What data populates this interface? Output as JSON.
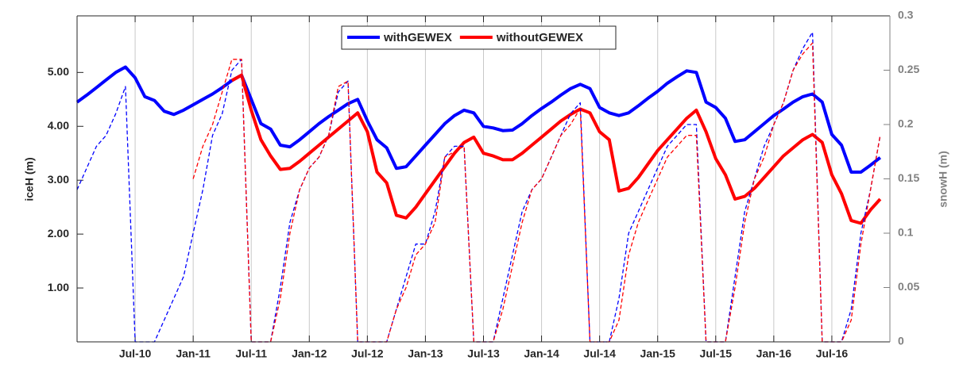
{
  "chart_data": {
    "type": "line",
    "x": [
      "2010-01",
      "2010-02",
      "2010-03",
      "2010-04",
      "2010-05",
      "2010-06",
      "2010-07",
      "2010-08",
      "2010-09",
      "2010-10",
      "2010-11",
      "2010-12",
      "2011-01",
      "2011-02",
      "2011-03",
      "2011-04",
      "2011-05",
      "2011-06",
      "2011-07",
      "2011-08",
      "2011-09",
      "2011-10",
      "2011-11",
      "2011-12",
      "2012-01",
      "2012-02",
      "2012-03",
      "2012-04",
      "2012-05",
      "2012-06",
      "2012-07",
      "2012-08",
      "2012-09",
      "2012-10",
      "2012-11",
      "2012-12",
      "2013-01",
      "2013-02",
      "2013-03",
      "2013-04",
      "2013-05",
      "2013-06",
      "2013-07",
      "2013-08",
      "2013-09",
      "2013-10",
      "2013-11",
      "2013-12",
      "2014-01",
      "2014-02",
      "2014-03",
      "2014-04",
      "2014-05",
      "2014-06",
      "2014-07",
      "2014-08",
      "2014-09",
      "2014-10",
      "2014-11",
      "2014-12",
      "2015-01",
      "2015-02",
      "2015-03",
      "2015-04",
      "2015-05",
      "2015-06",
      "2015-07",
      "2015-08",
      "2015-09",
      "2015-10",
      "2015-11",
      "2015-12",
      "2016-01",
      "2016-02",
      "2016-03",
      "2016-04",
      "2016-05",
      "2016-06",
      "2016-07",
      "2016-08",
      "2016-09",
      "2016-10",
      "2016-11",
      "2016-12"
    ],
    "xlim": [
      "2010-01",
      "2017-01"
    ],
    "xticks": [
      {
        "value": "2010-07",
        "label": "Jul-10"
      },
      {
        "value": "2011-01",
        "label": "Jan-11"
      },
      {
        "value": "2011-07",
        "label": "Jul-11"
      },
      {
        "value": "2012-01",
        "label": "Jan-12"
      },
      {
        "value": "2012-07",
        "label": "Jul-12"
      },
      {
        "value": "2013-01",
        "label": "Jan-13"
      },
      {
        "value": "2013-07",
        "label": "Jul-13"
      },
      {
        "value": "2014-01",
        "label": "Jan-14"
      },
      {
        "value": "2014-07",
        "label": "Jul-14"
      },
      {
        "value": "2015-01",
        "label": "Jan-15"
      },
      {
        "value": "2015-07",
        "label": "Jul-15"
      },
      {
        "value": "2016-01",
        "label": "Jan-16"
      },
      {
        "value": "2016-07",
        "label": "Jul-16"
      }
    ],
    "ylabel": "iceH (m)",
    "y2label": "snowH (m)",
    "ylim": [
      0,
      6.05
    ],
    "yticks": [
      {
        "value": 1,
        "label": "1.00"
      },
      {
        "value": 2,
        "label": "2.00"
      },
      {
        "value": 3,
        "label": "3.00"
      },
      {
        "value": 4,
        "label": "4.00"
      },
      {
        "value": 5,
        "label": "5.00"
      }
    ],
    "y2lim": [
      0,
      0.3
    ],
    "y2ticks": [
      0,
      0.05,
      0.1,
      0.15,
      0.2,
      0.25,
      0.3
    ],
    "y2color": "#808080",
    "grid": "x",
    "series": [
      {
        "name": "withGEWEX",
        "color": "#0000ff",
        "values": [
          4.45,
          4.58,
          4.72,
          4.86,
          5.0,
          5.1,
          4.9,
          4.55,
          4.48,
          4.28,
          4.22,
          4.3,
          4.4,
          4.5,
          4.6,
          4.72,
          4.85,
          4.95,
          4.5,
          4.05,
          3.95,
          3.65,
          3.62,
          3.75,
          3.9,
          4.05,
          4.18,
          4.3,
          4.42,
          4.5,
          4.1,
          3.75,
          3.6,
          3.22,
          3.25,
          3.45,
          3.65,
          3.85,
          4.05,
          4.2,
          4.3,
          4.25,
          4.0,
          3.97,
          3.92,
          3.93,
          4.05,
          4.2,
          4.33,
          4.45,
          4.58,
          4.7,
          4.78,
          4.7,
          4.35,
          4.25,
          4.2,
          4.25,
          4.38,
          4.52,
          4.65,
          4.8,
          4.92,
          5.03,
          5.0,
          4.45,
          4.35,
          4.15,
          3.72,
          3.75,
          3.9,
          4.05,
          4.2,
          4.32,
          4.45,
          4.55,
          4.6,
          4.45,
          3.85,
          3.65,
          3.15,
          3.15,
          3.28,
          3.42
        ]
      },
      {
        "name": "withoutGEWEX",
        "color": "#ff0000",
        "values": [
          null,
          null,
          null,
          null,
          null,
          null,
          null,
          null,
          null,
          null,
          null,
          null,
          null,
          null,
          null,
          null,
          4.85,
          4.95,
          4.3,
          3.75,
          3.45,
          3.2,
          3.22,
          3.35,
          3.5,
          3.65,
          3.8,
          3.95,
          4.1,
          4.25,
          3.9,
          3.15,
          2.95,
          2.35,
          2.3,
          2.5,
          2.75,
          3.0,
          3.25,
          3.5,
          3.7,
          3.8,
          3.5,
          3.45,
          3.38,
          3.38,
          3.5,
          3.65,
          3.8,
          3.95,
          4.1,
          4.22,
          4.32,
          4.25,
          3.9,
          3.75,
          2.8,
          2.85,
          3.05,
          3.3,
          3.55,
          3.75,
          3.95,
          4.15,
          4.3,
          3.9,
          3.4,
          3.1,
          2.65,
          2.7,
          2.85,
          3.05,
          3.25,
          3.45,
          3.6,
          3.75,
          3.85,
          3.7,
          3.1,
          2.75,
          2.25,
          2.2,
          2.45,
          2.65
        ]
      },
      {
        "color": "#0000ff",
        "dash": true,
        "axis": "y2",
        "values": [
          0.14,
          0.16,
          0.18,
          0.19,
          0.21,
          0.235,
          0,
          0,
          0,
          0.02,
          0.04,
          0.06,
          0.1,
          0.14,
          0.19,
          0.21,
          0.25,
          0.26,
          0,
          0,
          0,
          0.05,
          0.11,
          0.14,
          0.16,
          0.17,
          0.19,
          0.23,
          0.24,
          0,
          0,
          0,
          0,
          0.03,
          0.06,
          0.09,
          0.09,
          0.12,
          0.17,
          0.18,
          0.18,
          0,
          0,
          0,
          0.04,
          0.08,
          0.12,
          0.14,
          0.15,
          0.17,
          0.19,
          0.21,
          0.22,
          0,
          0,
          0,
          0.04,
          0.1,
          0.12,
          0.14,
          0.16,
          0.18,
          0.19,
          0.2,
          0.2,
          0,
          0,
          0,
          0.06,
          0.12,
          0.15,
          0.18,
          0.2,
          0.22,
          0.25,
          0.27,
          0.285,
          0,
          0,
          0,
          0.03,
          0.1,
          0.14,
          0.19
        ]
      },
      {
        "color": "#ff0000",
        "dash": true,
        "axis": "y2",
        "values": [
          null,
          null,
          null,
          null,
          null,
          null,
          null,
          null,
          null,
          null,
          null,
          null,
          0.15,
          0.18,
          0.2,
          0.23,
          0.26,
          0.26,
          0,
          0,
          0,
          0.04,
          0.1,
          0.14,
          0.16,
          0.17,
          0.19,
          0.235,
          0.24,
          0,
          0,
          0,
          0,
          0.03,
          0.05,
          0.08,
          0.09,
          0.11,
          0.17,
          0.175,
          0.18,
          0,
          0,
          0,
          0.03,
          0.07,
          0.11,
          0.14,
          0.15,
          0.17,
          0.19,
          0.2,
          0.215,
          0,
          0,
          0,
          0.02,
          0.08,
          0.11,
          0.13,
          0.15,
          0.17,
          0.18,
          0.19,
          0.19,
          0,
          0,
          0,
          0.05,
          0.11,
          0.15,
          0.17,
          0.2,
          0.22,
          0.25,
          0.265,
          0.275,
          0,
          0,
          0,
          0.02,
          0.09,
          0.14,
          0.19
        ]
      }
    ]
  }
}
